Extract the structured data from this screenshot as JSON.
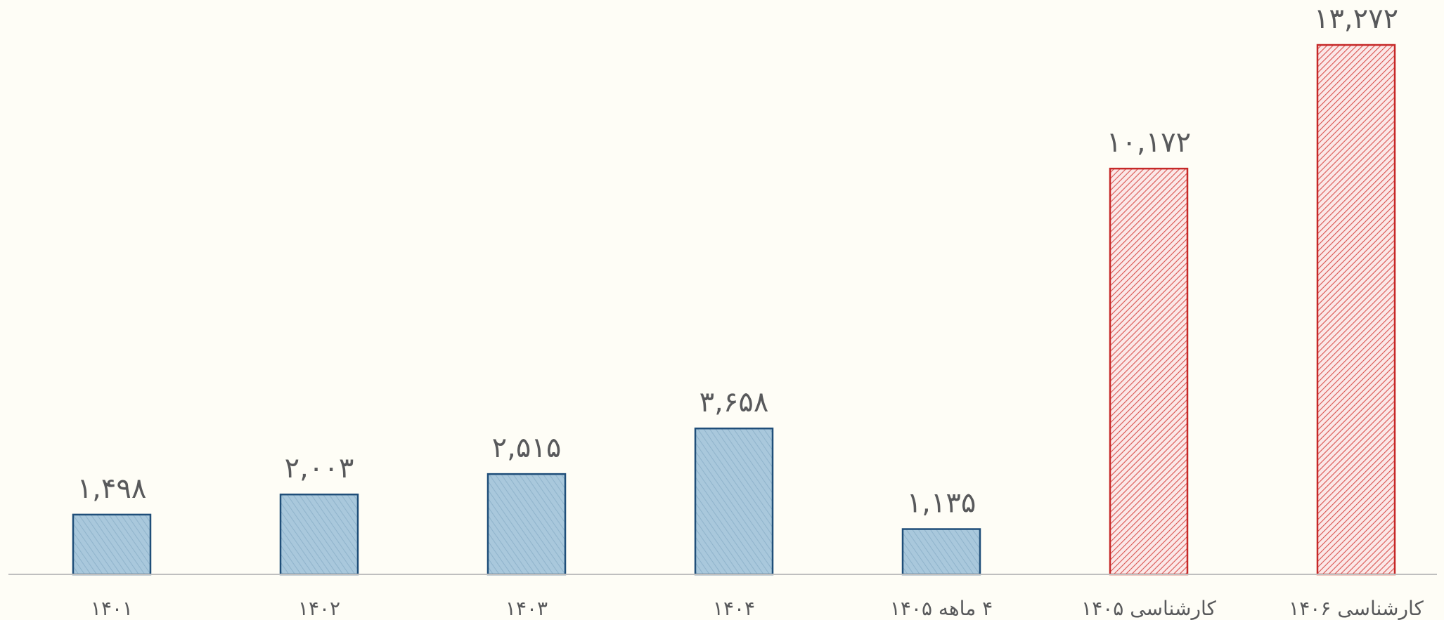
{
  "chart_data": {
    "type": "bar",
    "categories": [
      "۱۴۰۱",
      "۱۴۰۲",
      "۱۴۰۳",
      "۱۴۰۴",
      "۴ ماهه ۱۴۰۵",
      "کارشناسی ۱۴۰۵",
      "کارشناسی ۱۴۰۶"
    ],
    "values": [
      1498,
      2003,
      2515,
      3658,
      1135,
      10172,
      13272
    ],
    "value_labels": [
      "۱,۴۹۸",
      "۲,۰۰۳",
      "۲,۵۱۵",
      "۳,۶۵۸",
      "۱,۱۳۵",
      "۱۰,۱۷۲",
      "۱۳,۲۷۲"
    ],
    "kinds": [
      "actual",
      "actual",
      "actual",
      "actual",
      "actual",
      "estimate",
      "estimate"
    ],
    "title": "",
    "xlabel": "",
    "ylabel": "",
    "ylim": [
      0,
      14000
    ],
    "grid": false,
    "legend": "none",
    "colors": {
      "actual_fill": "#a9c8dc",
      "actual_stroke": "#1f4e79",
      "estimate_fill": "#fbe8e8",
      "estimate_hatch": "#d9534f",
      "estimate_stroke": "#c62828",
      "axis": "#bfbfbf",
      "text": "#58595b",
      "background": "#fefdf6"
    }
  }
}
